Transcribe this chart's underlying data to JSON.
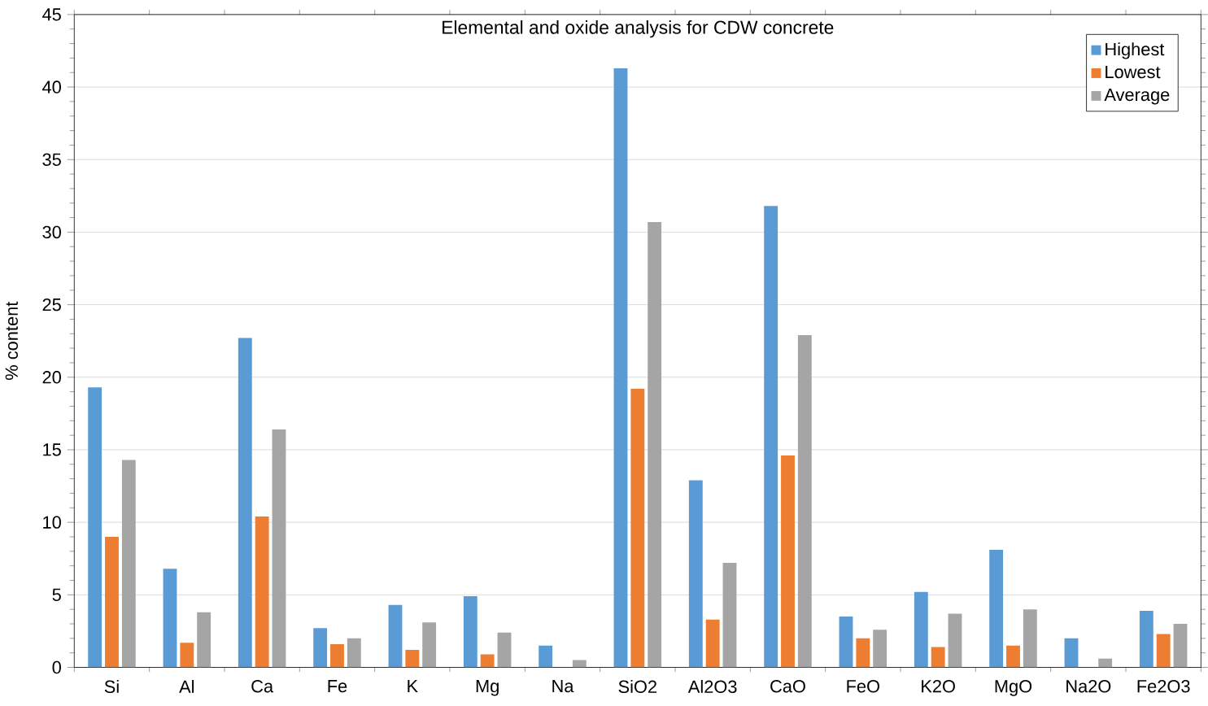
{
  "chart_data": {
    "type": "bar",
    "title": "Elemental and oxide analysis for CDW concrete",
    "ylabel": "% content",
    "categories": [
      "Si",
      "Al",
      "Ca",
      "Fe",
      "K",
      "Mg",
      "Na",
      "SiO2",
      "Al2O3",
      "CaO",
      "FeO",
      "K2O",
      "MgO",
      "Na2O",
      "Fe2O3"
    ],
    "series": [
      {
        "name": "Highest",
        "color": "#5b9bd5",
        "values": [
          19.3,
          6.8,
          22.7,
          2.7,
          4.3,
          4.9,
          1.5,
          41.3,
          12.9,
          31.8,
          3.5,
          5.2,
          8.1,
          2.0,
          3.9
        ]
      },
      {
        "name": "Lowest",
        "color": "#ed7d31",
        "values": [
          9.0,
          1.7,
          10.4,
          1.6,
          1.2,
          0.9,
          null,
          19.2,
          3.3,
          14.6,
          2.0,
          1.4,
          1.5,
          null,
          2.3
        ]
      },
      {
        "name": "Average",
        "color": "#a5a5a5",
        "values": [
          14.3,
          3.8,
          16.4,
          2.0,
          3.1,
          2.4,
          0.5,
          30.7,
          7.2,
          22.9,
          2.6,
          3.7,
          4.0,
          0.6,
          3.0
        ]
      }
    ],
    "ylim": [
      0,
      45
    ],
    "yticks": [
      0,
      5,
      10,
      15,
      20,
      25,
      30,
      35,
      40,
      45
    ],
    "grid": "y",
    "legend": "top right"
  }
}
